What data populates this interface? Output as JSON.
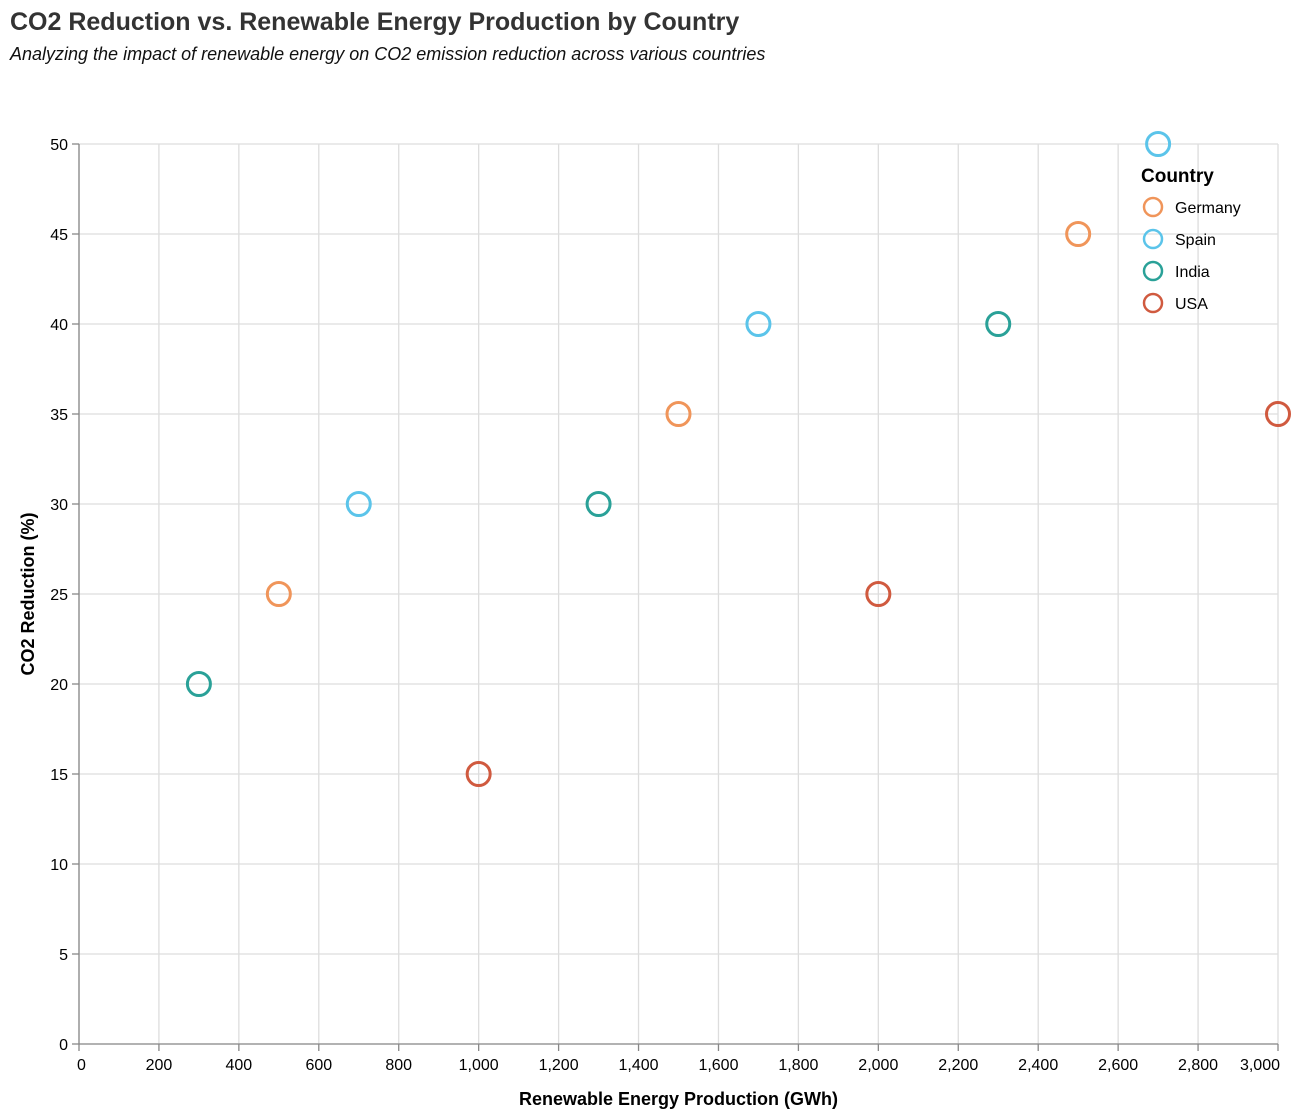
{
  "chart_data": {
    "type": "scatter",
    "title": "CO2 Reduction vs. Renewable Energy Production by Country",
    "subtitle": "Analyzing the impact of renewable energy on CO2 emission reduction across various countries",
    "xlabel": "Renewable Energy Production (GWh)",
    "ylabel": "CO2 Reduction (%)",
    "xlim": [
      0,
      3000
    ],
    "ylim": [
      0,
      50
    ],
    "x_ticks": [
      0,
      200,
      400,
      600,
      800,
      1000,
      1200,
      1400,
      1600,
      1800,
      2000,
      2200,
      2400,
      2600,
      2800,
      3000
    ],
    "x_tick_labels": [
      "0",
      "200",
      "400",
      "600",
      "800",
      "1,000",
      "1,200",
      "1,400",
      "1,600",
      "1,800",
      "2,000",
      "2,200",
      "2,400",
      "2,600",
      "2,800",
      "3,000"
    ],
    "y_ticks": [
      0,
      5,
      10,
      15,
      20,
      25,
      30,
      35,
      40,
      45,
      50
    ],
    "y_tick_labels": [
      "0",
      "5",
      "10",
      "15",
      "20",
      "25",
      "30",
      "35",
      "40",
      "45",
      "50"
    ],
    "grid": true,
    "legend_title": "Country",
    "legend_position": "top-right",
    "series": [
      {
        "name": "Germany",
        "color": "#f0955a",
        "points": [
          {
            "x": 500,
            "y": 25
          },
          {
            "x": 1500,
            "y": 35
          },
          {
            "x": 2500,
            "y": 45
          }
        ]
      },
      {
        "name": "Spain",
        "color": "#5bc4ea",
        "points": [
          {
            "x": 700,
            "y": 30
          },
          {
            "x": 1700,
            "y": 40
          },
          {
            "x": 2700,
            "y": 50
          }
        ]
      },
      {
        "name": "India",
        "color": "#2aa198",
        "points": [
          {
            "x": 300,
            "y": 20
          },
          {
            "x": 1300,
            "y": 30
          },
          {
            "x": 2300,
            "y": 40
          }
        ]
      },
      {
        "name": "USA",
        "color": "#d05a3f",
        "points": [
          {
            "x": 1000,
            "y": 15
          },
          {
            "x": 2000,
            "y": 25
          },
          {
            "x": 3000,
            "y": 35
          }
        ]
      }
    ]
  }
}
